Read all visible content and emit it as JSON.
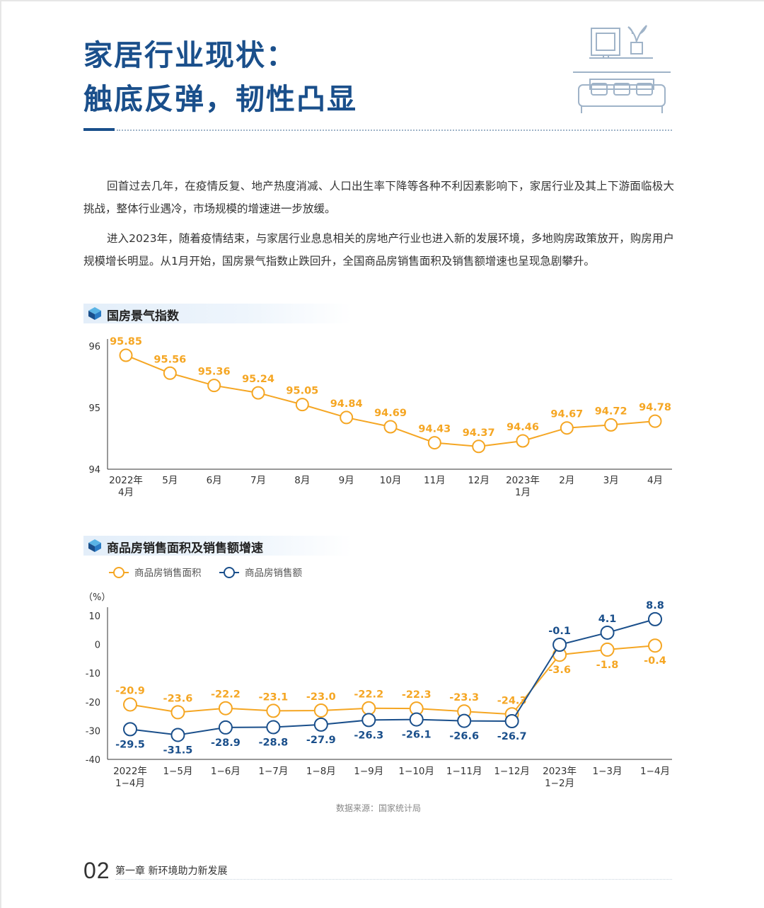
{
  "header": {
    "title_line1": "家居行业现状：",
    "title_line2": "触底反弹，韧性凸显",
    "illustration_icon": "sofa-living-room-icon"
  },
  "paragraphs": [
    "回首过去几年，在疫情反复、地产热度消减、人口出生率下降等各种不利因素影响下，家居行业及其上下游面临极大挑战，整体行业遇冷，市场规模的增速进一步放缓。",
    "进入2023年，随着疫情结束，与家居行业息息相关的房地产行业也进入新的发展环境，多地购房政策放开，购房用户规模增长明显。从1月开始，国房景气指数止跌回升，全国商品房销售面积及销售额增速也呈现急剧攀升。"
  ],
  "sections": [
    {
      "title": "国房景气指数",
      "icon": "cube-icon"
    },
    {
      "title": "商品房销售面积及销售额增速",
      "icon": "cube-icon"
    }
  ],
  "chart_data": [
    {
      "type": "line",
      "title": "国房景气指数",
      "categories": [
        [
          "2022年",
          "4月"
        ],
        [
          "5月"
        ],
        [
          "6月"
        ],
        [
          "7月"
        ],
        [
          "8月"
        ],
        [
          "9月"
        ],
        [
          "10月"
        ],
        [
          "11月"
        ],
        [
          "12月"
        ],
        [
          "2023年",
          "1月"
        ],
        [
          "2月"
        ],
        [
          "3月"
        ],
        [
          "4月"
        ]
      ],
      "series": [
        {
          "values": [
            95.85,
            95.56,
            95.36,
            95.24,
            95.05,
            94.84,
            94.69,
            94.43,
            94.37,
            94.46,
            94.67,
            94.72,
            94.78
          ],
          "color": "#f5a623"
        }
      ],
      "yticks": [
        94,
        95,
        96
      ],
      "ylim": [
        94,
        96
      ],
      "grid": false,
      "legend": "none"
    },
    {
      "type": "line",
      "title": "商品房销售面积及销售额增速",
      "ylabel": "（%）",
      "categories": [
        [
          "2022年",
          "1−4月"
        ],
        [
          "1−5月"
        ],
        [
          "1−6月"
        ],
        [
          "1−7月"
        ],
        [
          "1−8月"
        ],
        [
          "1−9月"
        ],
        [
          "1−10月"
        ],
        [
          "1−11月"
        ],
        [
          "1−12月"
        ],
        [
          "2023年",
          "1−2月"
        ],
        [
          "1−3月"
        ],
        [
          "1−4月"
        ]
      ],
      "series": [
        {
          "name": "商品房销售面积",
          "values": [
            -20.9,
            -23.6,
            -22.2,
            -23.1,
            -23.0,
            -22.2,
            -22.3,
            -23.3,
            -24.3,
            -3.6,
            -1.8,
            -0.4
          ],
          "color": "#f5a623"
        },
        {
          "name": "商品房销售额",
          "values": [
            -29.5,
            -31.5,
            -28.9,
            -28.8,
            -27.9,
            -26.3,
            -26.1,
            -26.6,
            -26.7,
            -0.1,
            4.1,
            8.8
          ],
          "color": "#1a4f8b"
        }
      ],
      "yticks": [
        10,
        0,
        -10,
        -20,
        -30,
        -40
      ],
      "ylim": [
        -40,
        10
      ],
      "grid": false,
      "legend": "top-left"
    }
  ],
  "source": "数据来源：国家统计局",
  "footer": {
    "page_number": "02",
    "chapter": "第一章  新环境助力新发展"
  }
}
